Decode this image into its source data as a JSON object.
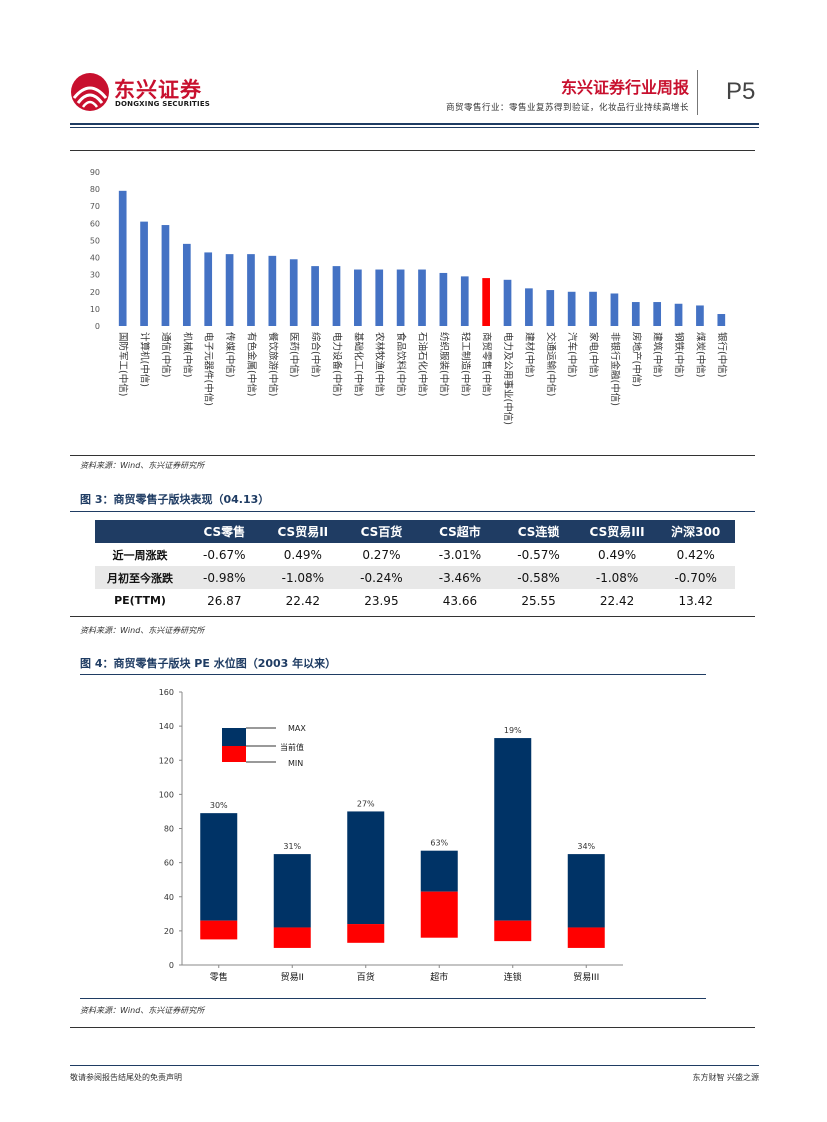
{
  "header": {
    "logo_cn": "东兴证券",
    "logo_en": "DONGXING SECURITIES",
    "title": "东兴证券行业周报",
    "subtitle": "商贸零售行业：零售业复苏得到验证，化妆品行业持续高增长",
    "page_number": "P5"
  },
  "figure2": {
    "source": "资料来源：Wind、东兴证券研究所"
  },
  "chart_data": [
    {
      "type": "bar",
      "title": "",
      "xlabel": "",
      "ylabel": "",
      "ylim": [
        0,
        90
      ],
      "yticks": [
        0,
        10,
        20,
        30,
        40,
        50,
        60,
        70,
        80,
        90
      ],
      "grid": false,
      "categories": [
        "国防军工(中信)",
        "计算机(中信)",
        "通信(中信)",
        "机械(中信)",
        "电子元器件(中信)",
        "传媒(中信)",
        "有色金属(中信)",
        "餐饮旅游(中信)",
        "医药(中信)",
        "综合(中信)",
        "电力设备(中信)",
        "基础化工(中信)",
        "农林牧渔(中信)",
        "食品饮料(中信)",
        "石油石化(中信)",
        "纺织服装(中信)",
        "轻工制造(中信)",
        "商贸零售(中信)",
        "电力及公用事业(中信)",
        "建材(中信)",
        "交通运输(中信)",
        "汽车(中信)",
        "家电(中信)",
        "非银行金融(中信)",
        "房地产(中信)",
        "建筑(中信)",
        "钢铁(中信)",
        "煤炭(中信)",
        "银行(中信)"
      ],
      "values": [
        79,
        61,
        59,
        48,
        43,
        42,
        42,
        41,
        39,
        35,
        35,
        33,
        33,
        33,
        33,
        31,
        29,
        28,
        27,
        22,
        21,
        20,
        20,
        19,
        14,
        14,
        13,
        12,
        7
      ],
      "bar_color": "#4472c4",
      "highlight_category": "商贸零售(中信)",
      "highlight_color": "#ff0000"
    },
    {
      "type": "bar",
      "title": "",
      "xlabel": "",
      "ylabel": "",
      "ylim": [
        0,
        160
      ],
      "yticks": [
        0,
        20,
        40,
        60,
        80,
        100,
        120,
        140,
        160
      ],
      "grid": false,
      "categories": [
        "零售",
        "贸易II",
        "百货",
        "超市",
        "连锁",
        "贸易III"
      ],
      "series": [
        {
          "name": "MAX",
          "values": [
            89,
            65,
            90,
            67,
            133,
            65
          ]
        },
        {
          "name": "当前值",
          "values": [
            26,
            22,
            24,
            43,
            26,
            22
          ]
        },
        {
          "name": "MIN",
          "values": [
            15,
            10,
            13,
            16,
            14,
            10
          ]
        }
      ],
      "data_labels": [
        "30%",
        "31%",
        "27%",
        "63%",
        "19%",
        "34%"
      ],
      "colors": {
        "range_upper": "#003366",
        "range_lower": "#ff0000"
      },
      "legend_placement": "top-left"
    }
  ],
  "figure3": {
    "title": "图 3：商贸零售子版块表现（04.13）",
    "source": "资料来源：Wind、东兴证券研究所",
    "columns": [
      "",
      "CS零售",
      "CS贸易II",
      "CS百货",
      "CS超市",
      "CS连锁",
      "CS贸易III",
      "沪深300"
    ],
    "rows": [
      {
        "label": "近一周涨跌",
        "values": [
          "-0.67%",
          "0.49%",
          "0.27%",
          "-3.01%",
          "-0.57%",
          "0.49%",
          "0.42%"
        ]
      },
      {
        "label": "月初至今涨跌",
        "values": [
          "-0.98%",
          "-1.08%",
          "-0.24%",
          "-3.46%",
          "-0.58%",
          "-1.08%",
          "-0.70%"
        ]
      },
      {
        "label": "PE(TTM)",
        "values": [
          "26.87",
          "22.42",
          "23.95",
          "43.66",
          "25.55",
          "22.42",
          "13.42"
        ]
      }
    ]
  },
  "figure4": {
    "title": "图 4：商贸零售子版块 PE 水位图（2003 年以来）",
    "source": "资料来源：Wind、东兴证券研究所"
  },
  "footer": {
    "left": "敬请参阅报告结尾处的免责声明",
    "right": "东方财智 兴盛之源"
  }
}
